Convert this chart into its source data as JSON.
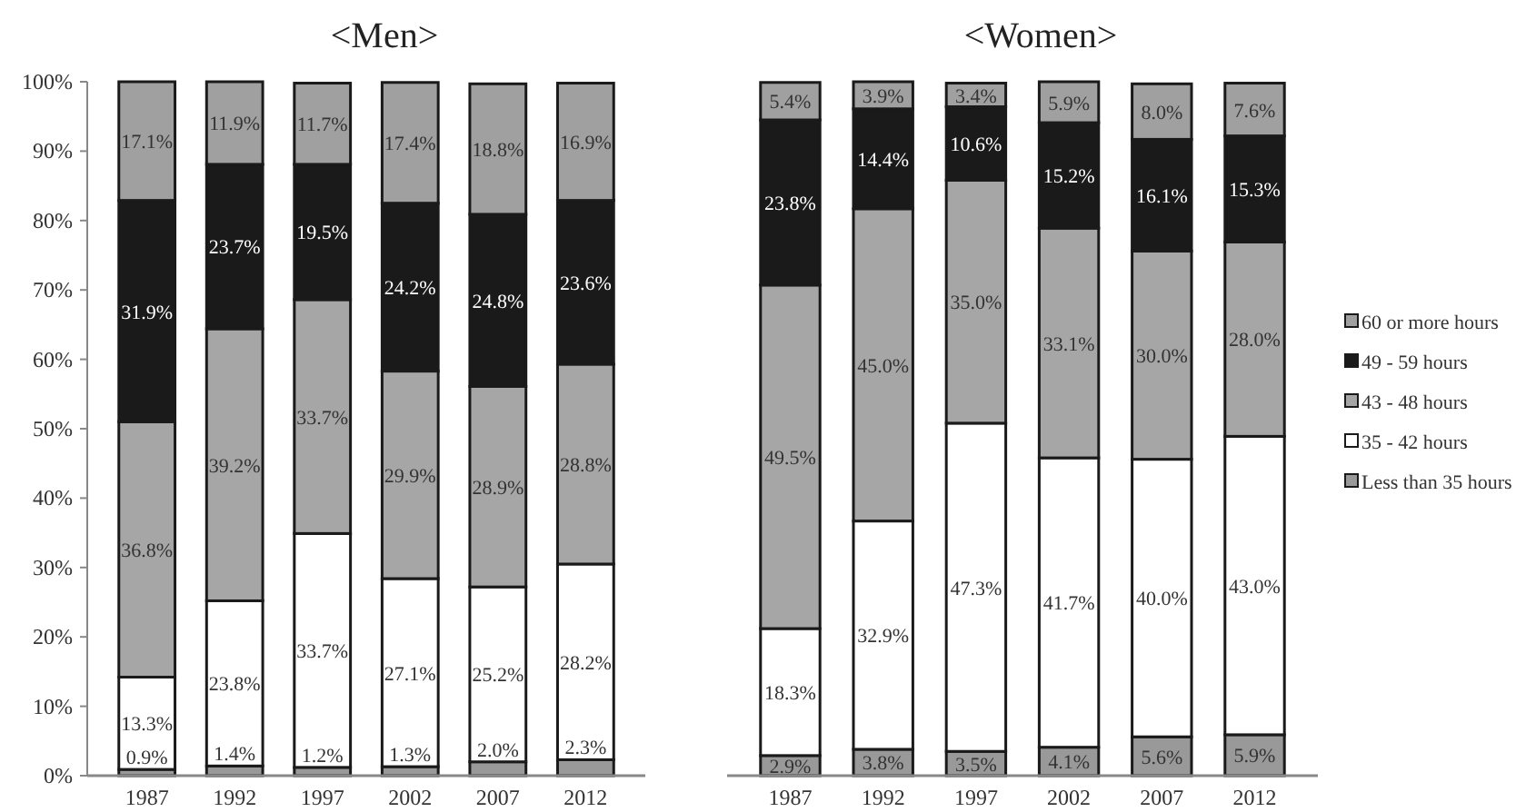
{
  "chart_data": [
    {
      "type": "bar",
      "title": "<Men>",
      "stacked": true,
      "categories": [
        "1987",
        "1992",
        "1997",
        "2002",
        "2007",
        "2012"
      ],
      "ylim": [
        0,
        100
      ],
      "yticks": [
        {
          "value": 0,
          "label": "0%"
        },
        {
          "value": 10,
          "label": "10%"
        },
        {
          "value": 20,
          "label": "20%"
        },
        {
          "value": 30,
          "label": "30%"
        },
        {
          "value": 40,
          "label": "40%"
        },
        {
          "value": 50,
          "label": "50%"
        },
        {
          "value": 60,
          "label": "60%"
        },
        {
          "value": 70,
          "label": "70%"
        },
        {
          "value": 80,
          "label": "80%"
        },
        {
          "value": 90,
          "label": "90%"
        },
        {
          "value": 100,
          "label": "100%"
        }
      ],
      "grid": false,
      "legend": false,
      "series": [
        {
          "color": "#999999",
          "values": [
            0.9,
            1.4,
            1.2,
            1.3,
            2.0,
            2.3
          ],
          "value_labels": [
            "0.9%",
            "1.4%",
            "1.2%",
            "1.3%",
            "2.0%",
            "2.3%"
          ]
        },
        {
          "color": "#ffffff",
          "values": [
            13.3,
            23.8,
            33.7,
            27.1,
            25.2,
            28.2
          ],
          "value_labels": [
            "13.3%",
            "23.8%",
            "33.7%",
            "27.1%",
            "25.2%",
            "28.2%"
          ]
        },
        {
          "color": "#a6a6a6",
          "values": [
            36.8,
            39.2,
            33.7,
            29.9,
            28.9,
            28.8
          ],
          "value_labels": [
            "36.8%",
            "39.2%",
            "33.7%",
            "29.9%",
            "28.9%",
            "28.8%"
          ]
        },
        {
          "color": "#1a1a1a",
          "values": [
            31.9,
            23.7,
            19.5,
            24.2,
            24.8,
            23.6
          ],
          "value_labels": [
            "31.9%",
            "23.7%",
            "19.5%",
            "24.2%",
            "24.8%",
            "23.6%"
          ]
        },
        {
          "color": "#a0a0a0",
          "values": [
            17.1,
            11.9,
            11.7,
            17.4,
            18.8,
            16.9
          ],
          "value_labels": [
            "17.1%",
            "11.9%",
            "11.7%",
            "17.4%",
            "18.8%",
            "16.9%"
          ]
        }
      ]
    },
    {
      "type": "bar",
      "title": "<Women>",
      "stacked": true,
      "categories": [
        "1987",
        "1992",
        "1997",
        "2002",
        "2007",
        "2012"
      ],
      "ylim": [
        0,
        100
      ],
      "tick_labels": "x",
      "grid": false,
      "legend": "right",
      "series": [
        {
          "name": "Less than 35 hours",
          "color": "#999999",
          "values": [
            2.9,
            3.8,
            3.5,
            4.1,
            5.6,
            5.9
          ],
          "value_labels": [
            "2.9%",
            "3.8%",
            "3.5%",
            "4.1%",
            "5.6%",
            "5.9%"
          ]
        },
        {
          "name": "35 - 42 hours",
          "color": "#ffffff",
          "values": [
            18.3,
            32.9,
            47.3,
            41.7,
            40.0,
            43.0
          ],
          "value_labels": [
            "18.3%",
            "32.9%",
            "47.3%",
            "41.7%",
            "40.0%",
            "43.0%"
          ]
        },
        {
          "name": "43 - 48 hours",
          "color": "#a6a6a6",
          "values": [
            49.5,
            45.0,
            35.0,
            33.1,
            30.0,
            28.0
          ],
          "value_labels": [
            "49.5%",
            "45.0%",
            "35.0%",
            "33.1%",
            "30.0%",
            "28.0%"
          ]
        },
        {
          "name": "49 - 59 hours",
          "color": "#1a1a1a",
          "values": [
            23.8,
            14.4,
            10.6,
            15.2,
            16.1,
            15.3
          ],
          "value_labels": [
            "23.8%",
            "14.4%",
            "10.6%",
            "15.2%",
            "16.1%",
            "15.3%"
          ]
        },
        {
          "name": "60 or more hours",
          "color": "#a0a0a0",
          "values": [
            5.4,
            3.9,
            3.4,
            5.9,
            8.0,
            7.6
          ],
          "value_labels": [
            "5.4%",
            "3.9%",
            "3.4%",
            "5.9%",
            "8.0%",
            "7.6%"
          ]
        }
      ]
    }
  ]
}
